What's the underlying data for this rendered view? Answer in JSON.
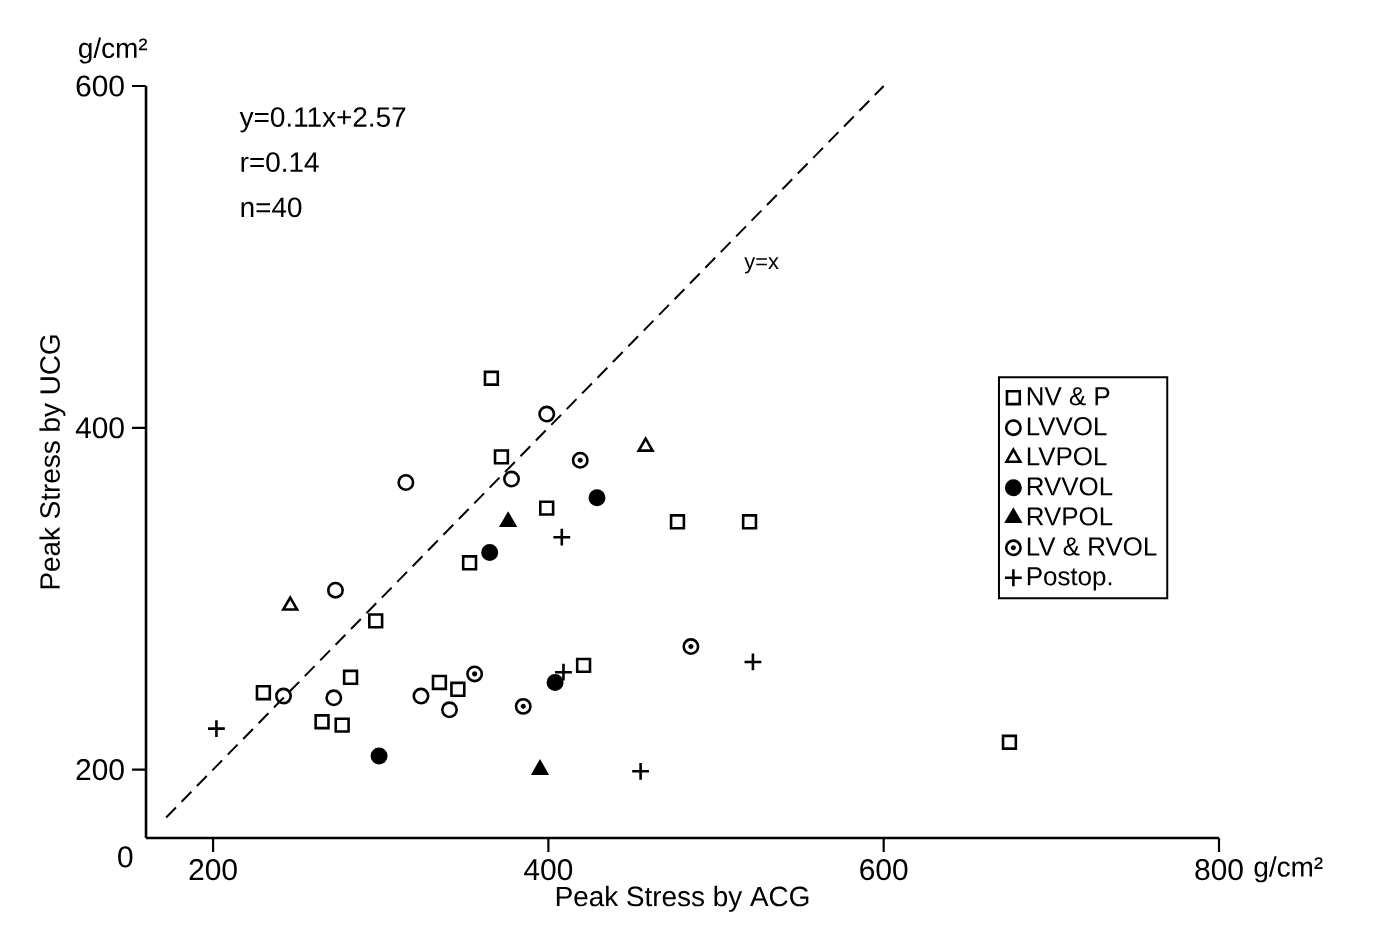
{
  "chart_data": {
    "type": "scatter",
    "xlabel": "Peak Stress by ACG",
    "ylabel": "Peak Stress by UCG",
    "xlim": [
      160,
      800
    ],
    "ylim": [
      160,
      600
    ],
    "xticks": [
      200,
      400,
      600,
      800
    ],
    "yticks": [
      200,
      400,
      600
    ],
    "grid": false,
    "legend": "right",
    "annotations": [
      "y=0.11x+2.57",
      "r=0.14",
      "n=40",
      "0",
      "g/cm²",
      "g/cm²"
    ],
    "series": [
      {
        "name": "NV & P",
        "color": "#000000",
        "marker": "square",
        "x": [
          366,
          372,
          399,
          353,
          297,
          282,
          230,
          265,
          277,
          335,
          346,
          421,
          477,
          520,
          675
        ],
        "values": [
          429,
          383,
          353,
          321,
          287,
          254,
          245,
          228,
          226,
          251,
          247,
          261,
          345,
          345,
          216
        ]
      },
      {
        "name": "LVVOL",
        "color": "#000000",
        "marker": "circle",
        "x": [
          399,
          315,
          378,
          273,
          242,
          272,
          324,
          341
        ],
        "values": [
          408,
          368,
          370,
          305,
          243,
          242,
          243,
          235
        ]
      },
      {
        "name": "LVPOL",
        "color": "#000000",
        "marker": "triangle",
        "x": [
          246,
          458
        ],
        "values": [
          296,
          389
        ]
      },
      {
        "name": "RVVOL",
        "color": "#000000",
        "marker": "circle",
        "x": [
          429,
          365,
          299,
          404
        ],
        "values": [
          359,
          327,
          208,
          251
        ]
      },
      {
        "name": "RVPOL",
        "color": "#000000",
        "marker": "triangle",
        "x": [
          376,
          395
        ],
        "values": [
          345,
          200
        ]
      },
      {
        "name": "LV & RVOL",
        "color": "#000000",
        "marker": "circle",
        "x": [
          419,
          356,
          385,
          485
        ],
        "values": [
          381,
          256,
          237,
          272
        ]
      },
      {
        "name": "Postop.",
        "color": "#000000",
        "marker": "cross",
        "x": [
          202,
          408,
          409,
          522,
          455
        ],
        "values": [
          224,
          336,
          257,
          263,
          199
        ]
      },
      {
        "name": "y=x",
        "type": "line",
        "line_style": "dashed",
        "marker": "none",
        "color": "#000000",
        "x": [
          172,
          600
        ],
        "values": [
          172,
          600
        ]
      }
    ]
  }
}
